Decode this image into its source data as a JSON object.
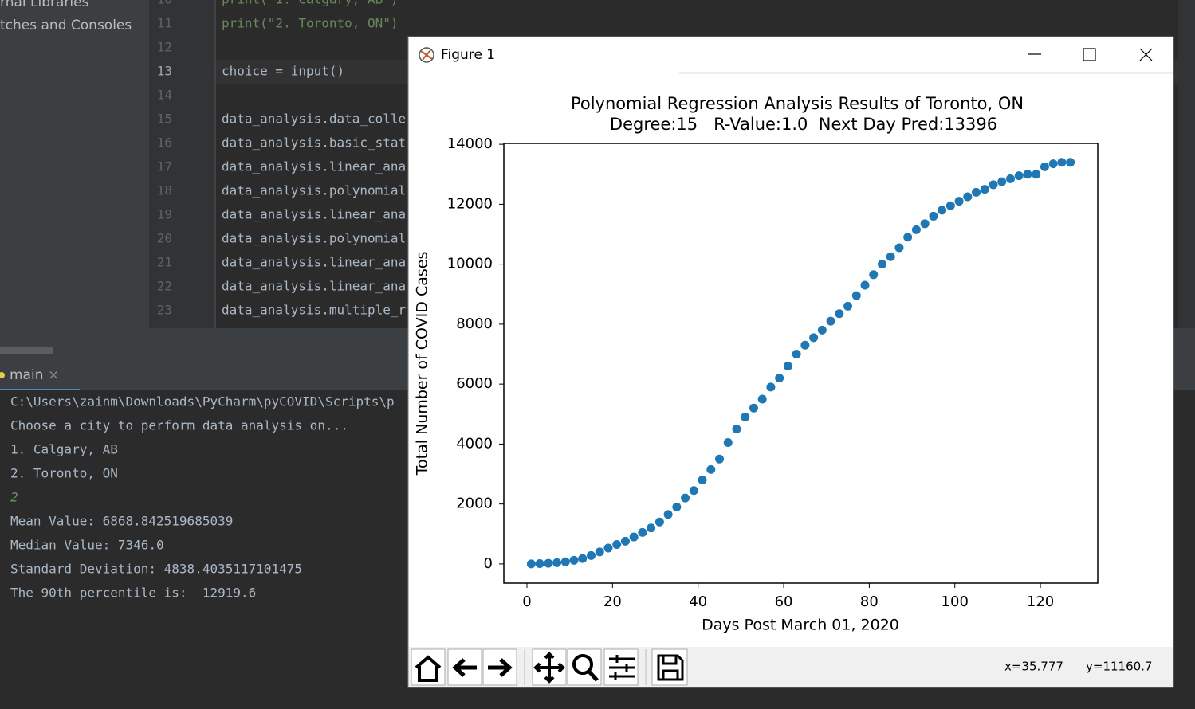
{
  "project_panel": {
    "items": [
      "rnal Libraries",
      "tches and Consoles"
    ]
  },
  "editor": {
    "line_numbers": [
      "10",
      "11",
      "12",
      "13",
      "14",
      "15",
      "16",
      "17",
      "18",
      "19",
      "20",
      "21",
      "22",
      "23"
    ],
    "lines": [
      "print(\"1. Calgary, AB\")",
      "print(\"2. Toronto, ON\")",
      "",
      "choice = input()",
      "",
      "data_analysis.data_colle",
      "data_analysis.basic_stat",
      "data_analysis.linear_ana",
      "data_analysis.polynomial",
      "data_analysis.linear_ana",
      "data_analysis.polynomial",
      "data_analysis.linear_ana",
      "data_analysis.linear_ana",
      "data_analysis.multiple_r"
    ]
  },
  "run_panel": {
    "tab": "main",
    "close": "×",
    "lines": [
      "C:\\Users\\zainm\\Downloads\\PyCharm\\pyCOVID\\Scripts\\p",
      "Choose a city to perform data analysis on...",
      "1. Calgary, AB",
      "2. Toronto, ON",
      "2",
      "Mean Value: 6868.842519685039",
      "Median Value: 7346.0",
      "Standard Deviation: 4838.4035117101475",
      "The 90th percentile is:  12919.6"
    ]
  },
  "figure_window": {
    "title": "Figure 1",
    "status_x": "x=35.777",
    "status_y": "y=11160.7"
  },
  "chart_data": {
    "type": "scatter",
    "title": "Polynomial Regression Analysis Results of Toronto, ON",
    "subtitle": "Degree:15   R-Value:1.0  Next Day Pred:13396",
    "x_label": "Days Post March 01, 2020",
    "y_label": "Total Number of COVID Cases",
    "color": "#1f77b4",
    "x": [
      1,
      3,
      5,
      7,
      9,
      11,
      13,
      15,
      17,
      19,
      21,
      23,
      25,
      27,
      29,
      31,
      33,
      35,
      37,
      39,
      41,
      43,
      45,
      47,
      49,
      51,
      53,
      55,
      57,
      59,
      61,
      63,
      65,
      67,
      69,
      71,
      73,
      75,
      77,
      79,
      81,
      83,
      85,
      87,
      89,
      91,
      93,
      95,
      97,
      99,
      101,
      103,
      105,
      107,
      109,
      111,
      113,
      115,
      117,
      119,
      121,
      123,
      125,
      127
    ],
    "values": [
      0,
      10,
      20,
      40,
      70,
      120,
      180,
      280,
      400,
      530,
      650,
      760,
      900,
      1050,
      1200,
      1400,
      1650,
      1900,
      2200,
      2450,
      2800,
      3150,
      3500,
      4050,
      4500,
      4900,
      5200,
      5500,
      5900,
      6200,
      6600,
      7000,
      7300,
      7550,
      7800,
      8100,
      8350,
      8600,
      8950,
      9300,
      9650,
      10000,
      10250,
      10550,
      10900,
      11150,
      11350,
      11600,
      11800,
      11950,
      12100,
      12250,
      12400,
      12500,
      12650,
      12750,
      12850,
      12950,
      13000,
      13000,
      13250,
      13350,
      13400,
      13400
    ],
    "xlim": [
      -5.4,
      133.4
    ],
    "ylim": [
      -640,
      14030
    ],
    "xticks": [
      0,
      20,
      40,
      60,
      80,
      100,
      120
    ],
    "yticks": [
      0,
      2000,
      4000,
      6000,
      8000,
      10000,
      12000,
      14000
    ]
  }
}
